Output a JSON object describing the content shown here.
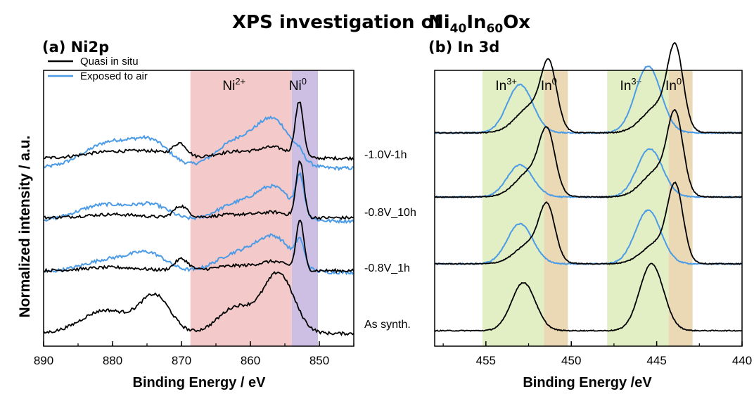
{
  "figure": {
    "title_prefix": "XPS investigation of",
    "title_formula": [
      {
        "t": "Ni",
        "sub": false
      },
      {
        "t": "40",
        "sub": true
      },
      {
        "t": "In",
        "sub": false
      },
      {
        "t": "60",
        "sub": true
      },
      {
        "t": "Ox",
        "sub": false
      }
    ],
    "ylabel": "Normalized intensity / a.u.",
    "sample_labels": [
      "-1.0V-1h",
      "-0.8V_10h",
      "-0.8V_1h",
      "As synth."
    ]
  },
  "colors": {
    "quasi": "#000000",
    "air": "#4b9be6",
    "ni2": "#f4c9c9",
    "ni0": "#cdbfe3",
    "in3": "#e2efc4",
    "in0": "#ead9b4"
  },
  "chart_data": [
    {
      "type": "line",
      "title": "(a) Ni2p",
      "xlabel": "Binding Energy / eV",
      "ylabel": "Normalized intensity / a.u.",
      "xlim": [
        890,
        845
      ],
      "x_reversed": true,
      "x_ticks": [
        "890",
        "880",
        "870",
        "860",
        "850"
      ],
      "legend": {
        "position": "top-left",
        "entries": [
          {
            "name": "Quasi in situ",
            "color": "#000000"
          },
          {
            "name": "Exposed to air",
            "color": "#4b9be6"
          }
        ]
      },
      "regions": [
        {
          "label": "Ni",
          "sup": "2+",
          "from": 868.7,
          "to": 854.0,
          "color": "#f4c9c9"
        },
        {
          "label": "Ni",
          "sup": "0",
          "from": 854.0,
          "to": 850.2,
          "color": "#cdbfe3"
        }
      ],
      "offsets": [
        1.0,
        0.68,
        0.37,
        0.0
      ],
      "samples": [
        {
          "name": "-1.0V-1h",
          "quasi": {
            "base": 0.06,
            "peaks": [
              [
                880,
                4,
                0.04
              ],
              [
                874,
                2.5,
                0.03
              ],
              [
                870.2,
                1.0,
                0.08
              ],
              [
                862,
                3,
                0.04
              ],
              [
                856.5,
                2,
                0.06
              ],
              [
                852.9,
                0.6,
                0.33
              ]
            ]
          },
          "air": {
            "base": 0.0,
            "peaks": [
              [
                880,
                4,
                0.16
              ],
              [
                874,
                2.5,
                0.12
              ],
              [
                862,
                3,
                0.16
              ],
              [
                856.5,
                2.5,
                0.27
              ],
              [
                852.9,
                0.6,
                0.03
              ]
            ]
          }
        },
        {
          "name": "-0.8V_10h",
          "quasi": {
            "base": 0.02,
            "peaks": [
              [
                880,
                4,
                0.02
              ],
              [
                870.1,
                1.0,
                0.07
              ],
              [
                862,
                3,
                0.02
              ],
              [
                856.5,
                2,
                0.03
              ],
              [
                852.8,
                0.55,
                0.34
              ]
            ]
          },
          "air": {
            "base": 0.0,
            "peaks": [
              [
                881,
                4,
                0.1
              ],
              [
                874,
                2.5,
                0.08
              ],
              [
                862,
                3,
                0.1
              ],
              [
                856.5,
                2.5,
                0.19
              ],
              [
                852.8,
                0.6,
                0.22
              ]
            ]
          }
        },
        {
          "name": "-0.8V_1h",
          "quasi": {
            "base": 0.01,
            "peaks": [
              [
                880,
                4,
                0.02
              ],
              [
                870.0,
                1.0,
                0.07
              ],
              [
                862,
                3,
                0.03
              ],
              [
                856.5,
                2,
                0.05
              ],
              [
                852.8,
                0.55,
                0.3
              ]
            ]
          },
          "air": {
            "base": 0.0,
            "peaks": [
              [
                880,
                4,
                0.08
              ],
              [
                874.5,
                2.5,
                0.09
              ],
              [
                862,
                3,
                0.11
              ],
              [
                856.5,
                2.5,
                0.2
              ],
              [
                852.8,
                0.6,
                0.14
              ]
            ]
          }
        },
        {
          "name": "As synth.",
          "quasi": {
            "base": 0.0,
            "peaks": [
              [
                881,
                3.5,
                0.14
              ],
              [
                873.8,
                2.2,
                0.22
              ],
              [
                862,
                2.6,
                0.16
              ],
              [
                855.9,
                2.2,
                0.36
              ]
            ]
          },
          "air": null
        }
      ]
    },
    {
      "type": "line",
      "title": "(b) In 3d",
      "xlabel": "Binding Energy /eV",
      "xlim": [
        458,
        440
      ],
      "x_reversed": true,
      "x_ticks": [
        "455",
        "450",
        "445",
        "440"
      ],
      "regions": [
        {
          "label": "In",
          "sup": "3+",
          "from": 455.2,
          "to": 451.6,
          "color": "#e2efc4"
        },
        {
          "label": "In",
          "sup": "0",
          "from": 451.6,
          "to": 450.2,
          "color": "#ead9b4"
        },
        {
          "label": "In",
          "sup": "3+",
          "from": 447.9,
          "to": 444.3,
          "color": "#e2efc4"
        },
        {
          "label": "In",
          "sup": "0",
          "from": 444.3,
          "to": 442.9,
          "color": "#ead9b4"
        }
      ],
      "offsets": [
        0.74,
        0.5,
        0.25,
        0.0
      ],
      "samples": [
        {
          "name": "-1.0V-1h",
          "quasi": {
            "base": 0.0,
            "peaks": [
              [
                452.3,
                0.9,
                0.1
              ],
              [
                451.3,
                0.45,
                0.22
              ],
              [
                444.9,
                0.9,
                0.1
              ],
              [
                443.9,
                0.45,
                0.28
              ]
            ]
          },
          "air": {
            "base": 0.0,
            "peaks": [
              [
                453.0,
                0.75,
                0.18
              ],
              [
                445.5,
                0.75,
                0.25
              ]
            ]
          }
        },
        {
          "name": "-0.8V_10h",
          "quasi": {
            "base": 0.0,
            "peaks": [
              [
                452.3,
                0.9,
                0.1
              ],
              [
                451.4,
                0.45,
                0.2
              ],
              [
                444.9,
                0.9,
                0.1
              ],
              [
                443.9,
                0.45,
                0.27
              ]
            ]
          },
          "air": {
            "base": 0.0,
            "peaks": [
              [
                453.0,
                0.75,
                0.12
              ],
              [
                445.4,
                0.75,
                0.18
              ]
            ]
          }
        },
        {
          "name": "-0.8V_1h",
          "quasi": {
            "base": 0.0,
            "peaks": [
              [
                452.3,
                0.9,
                0.08
              ],
              [
                451.4,
                0.45,
                0.18
              ],
              [
                444.9,
                0.9,
                0.08
              ],
              [
                443.9,
                0.45,
                0.26
              ]
            ]
          },
          "air": {
            "base": 0.0,
            "peaks": [
              [
                453.0,
                0.75,
                0.15
              ],
              [
                445.5,
                0.75,
                0.2
              ]
            ]
          }
        },
        {
          "name": "As synth.",
          "quasi": {
            "base": 0.0,
            "peaks": [
              [
                452.8,
                0.7,
                0.18
              ],
              [
                445.3,
                0.7,
                0.25
              ]
            ]
          },
          "air": null
        }
      ]
    }
  ]
}
